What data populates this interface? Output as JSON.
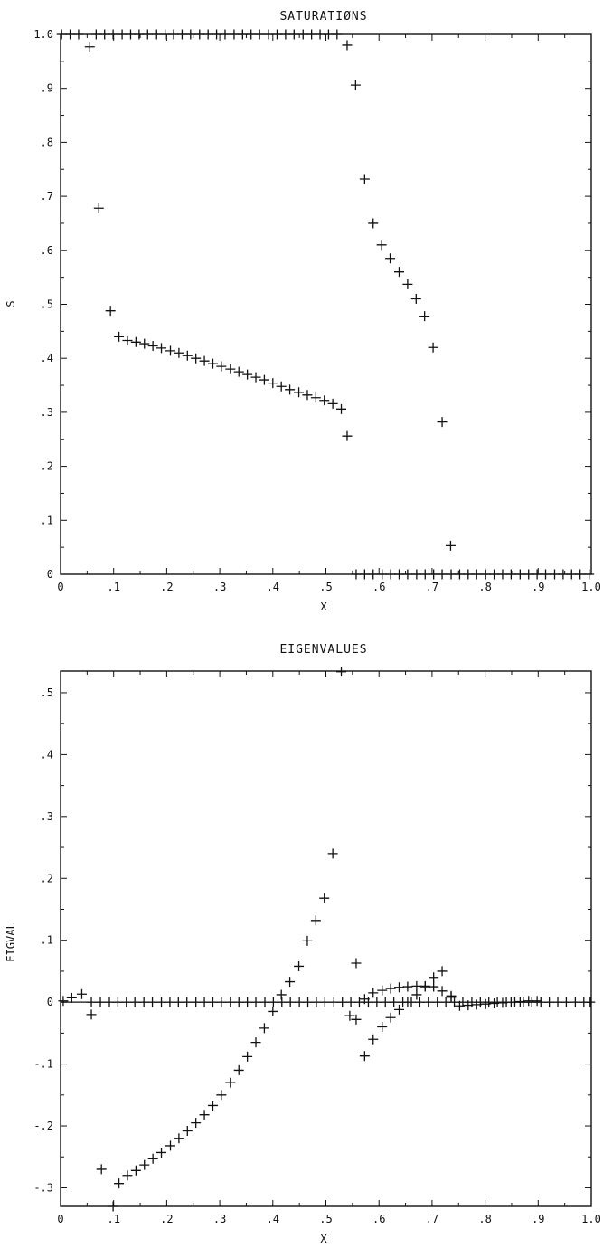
{
  "chart_data": [
    {
      "type": "scatter",
      "title": "SATURATIØNS",
      "xlabel": "X",
      "ylabel": "S",
      "xlim": [
        0,
        1.0
      ],
      "ylim": [
        0,
        1.0
      ],
      "xticks": [
        0,
        0.1,
        0.2,
        0.3,
        0.4,
        0.5,
        0.6,
        0.7,
        0.8,
        0.9,
        1.0
      ],
      "xtick_labels": [
        "0",
        ".1",
        ".2",
        ".3",
        ".4",
        ".5",
        ".6",
        ".7",
        ".8",
        ".9",
        "1.0"
      ],
      "yticks": [
        0,
        0.1,
        0.2,
        0.3,
        0.4,
        0.5,
        0.6,
        0.7,
        0.8,
        0.9,
        1.0
      ],
      "ytick_labels": [
        "0",
        ".1",
        ".2",
        ".3",
        ".4",
        ".5",
        ".6",
        ".7",
        ".8",
        ".9",
        "1.0"
      ],
      "marker": "+",
      "zero_line": false,
      "grid": false,
      "series": [
        {
          "x": [
            0.002,
            0.018,
            0.034,
            0.067,
            0.083,
            0.099,
            0.116,
            0.132,
            0.148,
            0.164,
            0.181,
            0.197,
            0.213,
            0.229,
            0.245,
            0.262,
            0.278,
            0.294,
            0.31,
            0.327,
            0.343,
            0.359,
            0.375,
            0.392,
            0.408,
            0.424,
            0.44,
            0.457,
            0.473,
            0.489,
            0.505,
            0.521
          ],
          "y": [
            1.0,
            1.0,
            1.0,
            1.0,
            1.0,
            1.0,
            1.0,
            1.0,
            1.0,
            1.0,
            1.0,
            1.0,
            1.0,
            1.0,
            1.0,
            1.0,
            1.0,
            1.0,
            1.0,
            1.0,
            1.0,
            1.0,
            1.0,
            1.0,
            1.0,
            1.0,
            1.0,
            1.0,
            1.0,
            1.0,
            1.0,
            1.0
          ]
        },
        {
          "x": [
            0.055,
            0.072,
            0.094,
            0.11,
            0.126,
            0.142,
            0.158,
            0.174,
            0.19,
            0.207,
            0.223,
            0.239,
            0.255,
            0.271,
            0.287,
            0.303,
            0.32,
            0.336,
            0.352,
            0.368,
            0.384,
            0.4,
            0.416,
            0.432,
            0.449,
            0.465,
            0.481,
            0.497,
            0.513,
            0.529,
            0.54
          ],
          "y": [
            0.977,
            0.678,
            0.488,
            0.44,
            0.433,
            0.43,
            0.427,
            0.423,
            0.419,
            0.414,
            0.41,
            0.405,
            0.4,
            0.395,
            0.39,
            0.385,
            0.38,
            0.375,
            0.37,
            0.365,
            0.36,
            0.354,
            0.348,
            0.342,
            0.337,
            0.332,
            0.327,
            0.322,
            0.316,
            0.306,
            0.256
          ]
        },
        {
          "x": [
            0.54,
            0.556,
            0.573,
            0.589,
            0.605,
            0.621,
            0.638,
            0.654,
            0.67,
            0.686,
            0.702,
            0.719,
            0.735
          ],
          "y": [
            0.98,
            0.906,
            0.732,
            0.65,
            0.61,
            0.585,
            0.56,
            0.537,
            0.51,
            0.478,
            0.42,
            0.282,
            0.053
          ]
        },
        {
          "x": [
            0.557,
            0.573,
            0.589,
            0.606,
            0.622,
            0.638,
            0.654,
            0.671,
            0.687,
            0.703,
            0.719,
            0.736,
            0.752,
            0.768,
            0.784,
            0.801,
            0.817,
            0.833,
            0.849,
            0.866,
            0.882,
            0.898,
            0.914,
            0.931,
            0.947,
            0.963,
            0.979,
            0.996
          ],
          "y": [
            0,
            0,
            0,
            0,
            0,
            0,
            0,
            0,
            0,
            0,
            0,
            0,
            0,
            0,
            0,
            0,
            0,
            0,
            0,
            0,
            0,
            0,
            0,
            0,
            0,
            0,
            0,
            0
          ]
        }
      ]
    },
    {
      "type": "scatter",
      "title": "EIGENVALUES",
      "xlabel": "X",
      "ylabel": "EIGVAL",
      "xlim": [
        0,
        1.0
      ],
      "ylim": [
        -0.33,
        0.535
      ],
      "xticks": [
        0,
        0.1,
        0.2,
        0.3,
        0.4,
        0.5,
        0.6,
        0.7,
        0.8,
        0.9,
        1.0
      ],
      "xtick_labels": [
        "0",
        ".1",
        ".2",
        ".3",
        ".4",
        ".5",
        ".6",
        ".7",
        ".8",
        ".9",
        "1.0"
      ],
      "yticks": [
        -0.3,
        -0.2,
        -0.1,
        0,
        0.1,
        0.2,
        0.3,
        0.4,
        0.5
      ],
      "ytick_labels": [
        "-.3",
        "-.2",
        "-.1",
        "0",
        ".1",
        ".2",
        ".3",
        ".4",
        ".5"
      ],
      "marker": "+",
      "zero_line": true,
      "grid": false,
      "series": [
        {
          "x": [
            0.005,
            0.021,
            0.04,
            0.058,
            0.075,
            0.092,
            0.108,
            0.124,
            0.14,
            0.157,
            0.173,
            0.19,
            0.206,
            0.222,
            0.238,
            0.255,
            0.271,
            0.287,
            0.303,
            0.32,
            0.336,
            0.352,
            0.368,
            0.385,
            0.401,
            0.417,
            0.433,
            0.45,
            0.466,
            0.482,
            0.498,
            0.515,
            0.531,
            0.547,
            0.563,
            0.58,
            0.596,
            0.612,
            0.628,
            0.645,
            0.661,
            0.677,
            0.693,
            0.71,
            0.726,
            0.742,
            0.758,
            0.775,
            0.791,
            0.807,
            0.823,
            0.84,
            0.856,
            0.872,
            0.888,
            0.905,
            0.921,
            0.937,
            0.953,
            0.97,
            0.986,
            0.998
          ],
          "y": [
            0.002,
            0.007,
            0.013,
            0,
            0,
            0,
            0,
            0,
            0,
            0,
            0,
            0,
            0,
            0,
            0,
            0,
            0,
            0,
            0,
            0,
            0,
            0,
            0,
            0,
            0,
            0,
            0,
            0,
            0,
            0,
            0,
            0,
            0,
            0,
            0,
            0,
            0,
            0,
            0,
            0,
            0,
            0,
            0,
            0,
            0,
            0,
            0,
            0,
            0,
            0,
            0,
            0,
            0,
            0,
            0,
            0,
            0,
            0,
            0,
            0,
            0,
            0
          ]
        },
        {
          "x": [
            0.058,
            0.077,
            0.099,
            0.11,
            0.126,
            0.142,
            0.158,
            0.174,
            0.19,
            0.207,
            0.223,
            0.239,
            0.255,
            0.271,
            0.287,
            0.303,
            0.32,
            0.336,
            0.352,
            0.368,
            0.384,
            0.4,
            0.416,
            0.432,
            0.449,
            0.465,
            0.481,
            0.497,
            0.513,
            0.529,
            0.545
          ],
          "y": [
            -0.02,
            -0.27,
            -0.33,
            -0.293,
            -0.28,
            -0.272,
            -0.263,
            -0.253,
            -0.243,
            -0.232,
            -0.22,
            -0.208,
            -0.195,
            -0.182,
            -0.167,
            -0.15,
            -0.13,
            -0.11,
            -0.088,
            -0.065,
            -0.042,
            -0.015,
            0.012,
            0.033,
            0.058,
            0.099,
            0.132,
            0.168,
            0.24,
            0.534,
            -0.022
          ]
        },
        {
          "x": [
            0.557,
            0.573,
            0.589,
            0.606,
            0.622,
            0.638,
            0.654,
            0.671,
            0.687,
            0.703,
            0.719,
            0.736
          ],
          "y": [
            0.063,
            -0.087,
            -0.06,
            -0.04,
            -0.025,
            -0.012,
            0.0,
            0.012,
            0.025,
            0.04,
            0.05,
            0.01
          ]
        },
        {
          "x": [
            0.557,
            0.573,
            0.589,
            0.606,
            0.622,
            0.638,
            0.654,
            0.671,
            0.687,
            0.703,
            0.719,
            0.736,
            0.752,
            0.768,
            0.784,
            0.801,
            0.817,
            0.833,
            0.849,
            0.866,
            0.882,
            0.898
          ],
          "y": [
            -0.028,
            0.005,
            0.015,
            0.019,
            0.022,
            0.024,
            0.025,
            0.026,
            0.026,
            0.025,
            0.018,
            0.008,
            -0.006,
            -0.005,
            -0.004,
            -0.003,
            -0.002,
            -0.001,
            0.0,
            0.001,
            0.002,
            0.002
          ]
        }
      ]
    }
  ]
}
